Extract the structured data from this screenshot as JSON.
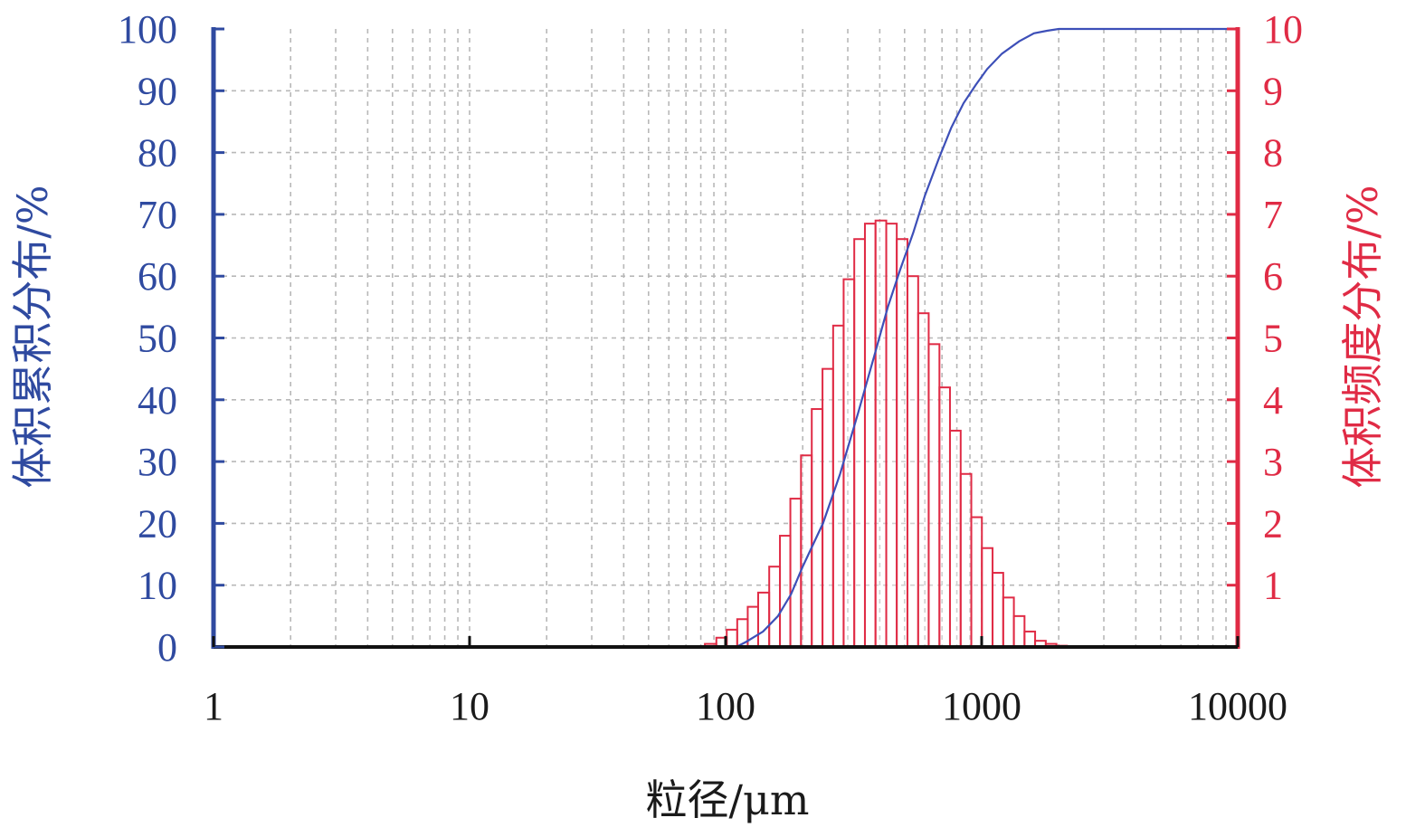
{
  "chart_data": {
    "type": "bar+line",
    "title": "",
    "xlabel": "粒径/μm",
    "ylabel_left": "体积累积分布/%",
    "ylabel_right": "体积频度分布/%",
    "x_scale": "log",
    "xlim": [
      1,
      10000
    ],
    "ylim_left": [
      0,
      100
    ],
    "ylim_right": [
      0,
      10
    ],
    "grid": true,
    "x_ticks": [
      "1",
      "10",
      "100",
      "1000",
      "10000"
    ],
    "left_ticks": [
      "0",
      "10",
      "20",
      "30",
      "40",
      "50",
      "60",
      "70",
      "80",
      "90",
      "100"
    ],
    "right_ticks": [
      "1",
      "2",
      "3",
      "4",
      "5",
      "6",
      "7",
      "8",
      "9",
      "10"
    ],
    "colors": {
      "left_axis": "#2f4aa0",
      "right_axis": "#e02b45",
      "bars": "#e02b45",
      "curve": "#3d4fb8",
      "grid": "#b8b8b8"
    },
    "frequency_bars": {
      "axis": "right",
      "x_left_edges": [
        83,
        92,
        101,
        111,
        122,
        134,
        148,
        163,
        179,
        197,
        217,
        239,
        263,
        289,
        318,
        350,
        385,
        424,
        466,
        513,
        565,
        621,
        684,
        752,
        828,
        911,
        1002,
        1103,
        1214,
        1336,
        1470,
        1617,
        1780,
        1959,
        2155
      ],
      "x_right_edge": 2372,
      "values": [
        0.05,
        0.15,
        0.28,
        0.45,
        0.65,
        0.88,
        1.3,
        1.8,
        2.4,
        3.1,
        3.85,
        4.5,
        5.2,
        5.95,
        6.6,
        6.85,
        6.9,
        6.85,
        6.6,
        6.0,
        5.4,
        4.9,
        4.2,
        3.5,
        2.8,
        2.1,
        1.6,
        1.2,
        0.8,
        0.5,
        0.25,
        0.1,
        0.05,
        0.02,
        0.01
      ]
    },
    "cumulative_curve": {
      "axis": "left",
      "x": [
        110,
        120,
        140,
        160,
        180,
        200,
        240,
        280,
        330,
        380,
        430,
        480,
        540,
        600,
        680,
        760,
        850,
        950,
        1050,
        1200,
        1400,
        1600,
        1800,
        2000,
        10000
      ],
      "y": [
        0,
        0.8,
        2.5,
        5,
        8.5,
        13,
        20,
        28,
        38,
        47,
        55,
        61,
        67,
        73,
        79,
        84,
        88,
        91,
        93.5,
        96,
        98,
        99.3,
        99.7,
        100,
        100
      ]
    }
  }
}
